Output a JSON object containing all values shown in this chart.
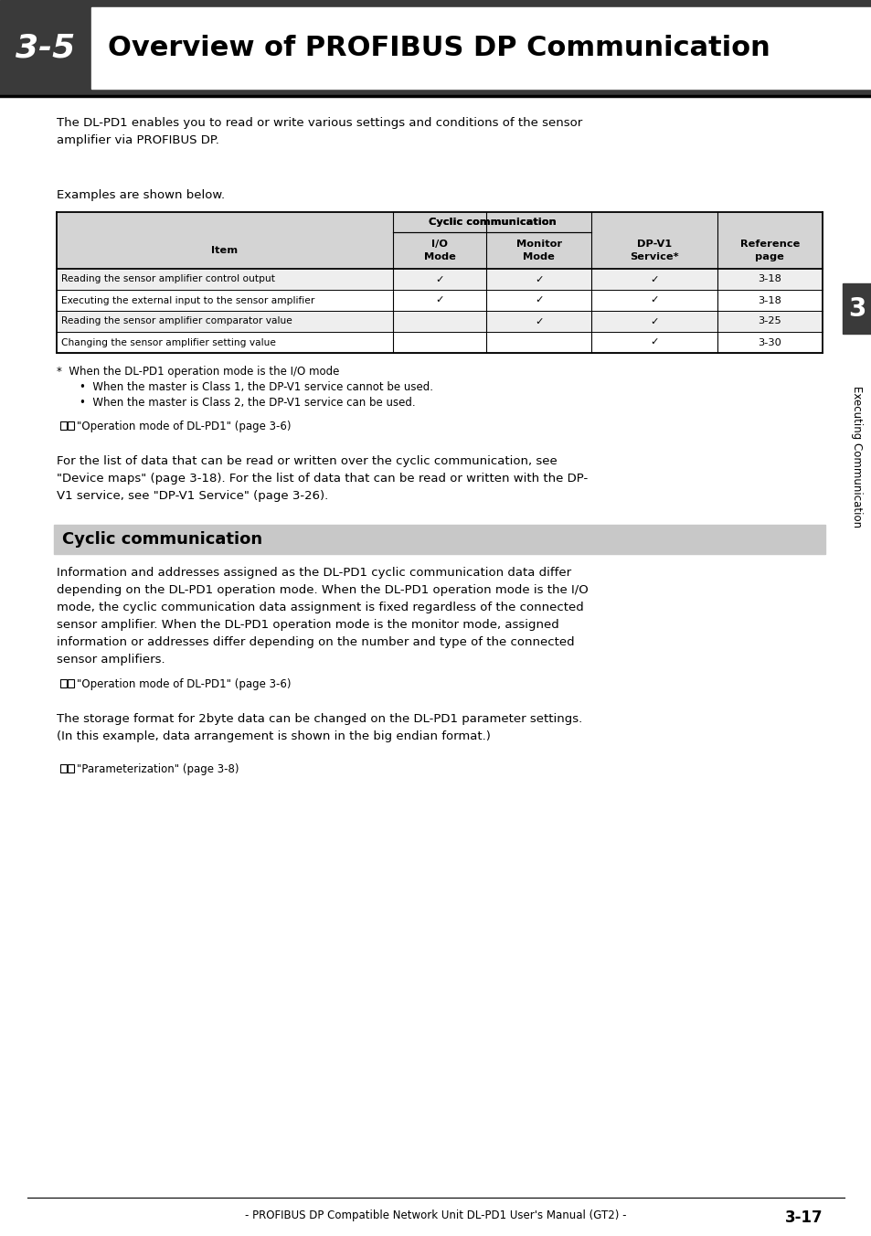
{
  "page_bg": "#ffffff",
  "header_dark_bg": "#3a3a3a",
  "header_number": "3-5",
  "header_title": "Overview of PROFIBUS DP Communication",
  "sidebar_bg": "#3a3a3a",
  "sidebar_text": "Executing Communication",
  "sidebar_number": "3",
  "intro_text": "The DL-PD1 enables you to read or write various settings and conditions of the sensor\namplifier via PROFIBUS DP.",
  "examples_label": "Examples are shown below.",
  "table_header_bg": "#d4d4d4",
  "table_row_bg_even": "#eeeeee",
  "table_row_bg_odd": "#ffffff",
  "table_span_header": "Cyclic communication",
  "table_rows": [
    [
      "Reading the sensor amplifier control output",
      "✓",
      "✓",
      "✓",
      "3-18"
    ],
    [
      "Executing the external input to the sensor amplifier",
      "✓",
      "✓",
      "✓",
      "3-18"
    ],
    [
      "Reading the sensor amplifier comparator value",
      "",
      "✓",
      "✓",
      "3-25"
    ],
    [
      "Changing the sensor amplifier setting value",
      "",
      "",
      "✓",
      "3-30"
    ]
  ],
  "footnote_lines": [
    "*  When the DL-PD1 operation mode is the I/O mode",
    "    •  When the master is Class 1, the DP-V1 service cannot be used.",
    "    •  When the master is Class 2, the DP-V1 service can be used."
  ],
  "ref_link1": "□□ \"Operation mode of DL-PD1\" (page 3-6)",
  "para_text": "For the list of data that can be read or written over the cyclic communication, see\n\"Device maps\" (page 3-18). For the list of data that can be read or written with the DP-\nV1 service, see \"DP-V1 Service\" (page 3-26).",
  "section_heading": "Cyclic communication",
  "section_heading_bg": "#c8c8c8",
  "cyclic_text": "Information and addresses assigned as the DL-PD1 cyclic communication data differ\ndepending on the DL-PD1 operation mode. When the DL-PD1 operation mode is the I/O\nmode, the cyclic communication data assignment is fixed regardless of the connected\nsensor amplifier. When the DL-PD1 operation mode is the monitor mode, assigned\ninformation or addresses differ depending on the number and type of the connected\nsensor amplifiers.",
  "ref_link2": "□□ \"Operation mode of DL-PD1\" (page 3-6)",
  "storage_text": "The storage format for 2byte data can be changed on the DL-PD1 parameter settings.\n(In this example, data arrangement is shown in the big endian format.)",
  "ref_link3": "□□ \"Parameterization\" (page 3-8)",
  "footer_text": "- PROFIBUS DP Compatible Network Unit DL-PD1 User's Manual (GT2) -",
  "footer_page": "3-17",
  "fs_body": 9.5,
  "fs_small": 8.5,
  "fs_table": 8.2,
  "fs_heading": 20,
  "fs_number": 26,
  "fs_title": 22
}
